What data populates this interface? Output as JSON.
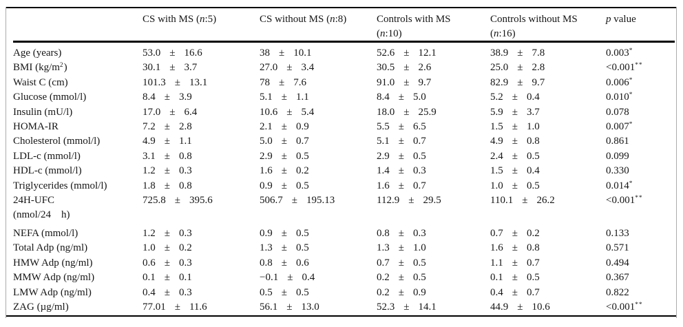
{
  "pm_symbol": "±",
  "table": {
    "header": {
      "col_label": "",
      "col1": "CS with MS (<i>n</i>:5)",
      "col2": "CS without MS (<i>n</i>:8)",
      "col3": "Controls with MS<br>(<i>n</i>:10)",
      "col4": "Controls without MS<br>(<i>n</i>:16)",
      "col_p": "<i>p</i> value"
    },
    "rows": [
      {
        "label": "Age (years)",
        "cs_ms": {
          "m": "53.0",
          "sd": "16.6"
        },
        "cs_no_ms": {
          "m": "38",
          "sd": "10.1"
        },
        "ctrl_ms": {
          "m": "52.6",
          "sd": "12.1"
        },
        "ctrl_no_ms": {
          "m": "38.9",
          "sd": "7.8"
        },
        "p": "0.003<sup>*</sup>"
      },
      {
        "label": "BMI (kg/m<sup>2</sup>)",
        "cs_ms": {
          "m": "30.1",
          "sd": "3.7"
        },
        "cs_no_ms": {
          "m": "27.0",
          "sd": "3.4"
        },
        "ctrl_ms": {
          "m": "30.5",
          "sd": "2.6"
        },
        "ctrl_no_ms": {
          "m": "25.0",
          "sd": "2.8"
        },
        "p": "&lt;0.001<sup>**</sup>"
      },
      {
        "label": "Waist C (cm)",
        "cs_ms": {
          "m": "101.3",
          "sd": "13.1"
        },
        "cs_no_ms": {
          "m": "78",
          "sd": "7.6"
        },
        "ctrl_ms": {
          "m": "91.0",
          "sd": "9.7"
        },
        "ctrl_no_ms": {
          "m": "82.9",
          "sd": "9.7"
        },
        "p": "0.006<sup>*</sup>"
      },
      {
        "label": "Glucose (mmol/l)",
        "cs_ms": {
          "m": "8.4",
          "sd": "3.9"
        },
        "cs_no_ms": {
          "m": "5.1",
          "sd": "1.1"
        },
        "ctrl_ms": {
          "m": "8.4",
          "sd": "5.0"
        },
        "ctrl_no_ms": {
          "m": "5.2",
          "sd": "0.4"
        },
        "p": "0.010<sup>*</sup>"
      },
      {
        "label": "Insulin (mU/l)",
        "cs_ms": {
          "m": "17.0",
          "sd": "6.4"
        },
        "cs_no_ms": {
          "m": "10.6",
          "sd": "5.4"
        },
        "ctrl_ms": {
          "m": "18.0",
          "sd": "25.9"
        },
        "ctrl_no_ms": {
          "m": "5.9",
          "sd": "3.7"
        },
        "p": "0.078"
      },
      {
        "label": "HOMA-IR",
        "cs_ms": {
          "m": "7.2",
          "sd": "2.8"
        },
        "cs_no_ms": {
          "m": "2.1",
          "sd": "0.9"
        },
        "ctrl_ms": {
          "m": "5.5",
          "sd": "6.5"
        },
        "ctrl_no_ms": {
          "m": "1.5",
          "sd": "1.0"
        },
        "p": "0.007<sup>*</sup>"
      },
      {
        "label": "Cholesterol (mmol/l)",
        "cs_ms": {
          "m": "4.9",
          "sd": "1.1"
        },
        "cs_no_ms": {
          "m": "5.0",
          "sd": "0.7"
        },
        "ctrl_ms": {
          "m": "5.1",
          "sd": "0.7"
        },
        "ctrl_no_ms": {
          "m": "4.9",
          "sd": "0.8"
        },
        "p": "0.861"
      },
      {
        "label": "LDL-c (mmol/l)",
        "cs_ms": {
          "m": "3.1",
          "sd": "0.8"
        },
        "cs_no_ms": {
          "m": "2.9",
          "sd": "0.5"
        },
        "ctrl_ms": {
          "m": "2.9",
          "sd": "0.5"
        },
        "ctrl_no_ms": {
          "m": "2.4",
          "sd": "0.5"
        },
        "p": "0.099"
      },
      {
        "label": "HDL-c (mmol/l)",
        "cs_ms": {
          "m": "1.2",
          "sd": "0.3"
        },
        "cs_no_ms": {
          "m": "1.6",
          "sd": "0.2"
        },
        "ctrl_ms": {
          "m": "1.4",
          "sd": "0.3"
        },
        "ctrl_no_ms": {
          "m": "1.5",
          "sd": "0.4"
        },
        "p": "0.330"
      },
      {
        "label": "Triglycerides (mmol/l)",
        "cs_ms": {
          "m": "1.8",
          "sd": "0.8"
        },
        "cs_no_ms": {
          "m": "0.9",
          "sd": "0.5"
        },
        "ctrl_ms": {
          "m": "1.6",
          "sd": "0.7"
        },
        "ctrl_no_ms": {
          "m": "1.0",
          "sd": "0.5"
        },
        "p": "0.014<sup>*</sup>"
      },
      {
        "label": "24H-UFC<br>(nmol/24&nbsp;&nbsp;&nbsp;&nbsp;h)",
        "cs_ms": {
          "m": "725.8",
          "sd": "395.6"
        },
        "cs_no_ms": {
          "m": "506.7",
          "sd": "195.13"
        },
        "ctrl_ms": {
          "m": "112.9",
          "sd": "29.5"
        },
        "ctrl_no_ms": {
          "m": "110.1",
          "sd": "26.2"
        },
        "p": "&lt;0.001<sup>**</sup>"
      },
      {
        "label": "NEFA (mmol/l)",
        "cs_ms": {
          "m": "1.2",
          "sd": "0.3"
        },
        "cs_no_ms": {
          "m": "0.9",
          "sd": "0.5"
        },
        "ctrl_ms": {
          "m": "0.8",
          "sd": "0.3"
        },
        "ctrl_no_ms": {
          "m": "0.7",
          "sd": "0.2"
        },
        "p": "0.133"
      },
      {
        "label": "Total Adp (ng/ml)",
        "cs_ms": {
          "m": "1.0",
          "sd": "0.2"
        },
        "cs_no_ms": {
          "m": "1.3",
          "sd": "0.5"
        },
        "ctrl_ms": {
          "m": "1.3",
          "sd": "1.0"
        },
        "ctrl_no_ms": {
          "m": "1.6",
          "sd": "0.8"
        },
        "p": "0.571"
      },
      {
        "label": "HMW Adp (ng/ml)",
        "cs_ms": {
          "m": "0.6",
          "sd": "0.3"
        },
        "cs_no_ms": {
          "m": "0.8",
          "sd": "0.6"
        },
        "ctrl_ms": {
          "m": "0.7",
          "sd": "0.5"
        },
        "ctrl_no_ms": {
          "m": "1.1",
          "sd": "0.7"
        },
        "p": "0.494"
      },
      {
        "label": "MMW Adp (ng/ml)",
        "cs_ms": {
          "m": "0.1",
          "sd": "0.1"
        },
        "cs_no_ms": {
          "m": "−0.1",
          "sd": "0.4"
        },
        "ctrl_ms": {
          "m": "0.2",
          "sd": "0.5"
        },
        "ctrl_no_ms": {
          "m": "0.1",
          "sd": "0.5"
        },
        "p": "0.367"
      },
      {
        "label": "LMW Adp (ng/ml)",
        "cs_ms": {
          "m": "0.4",
          "sd": "0.3"
        },
        "cs_no_ms": {
          "m": "0.5",
          "sd": "0.5"
        },
        "ctrl_ms": {
          "m": "0.2",
          "sd": "0.9"
        },
        "ctrl_no_ms": {
          "m": "0.4",
          "sd": "0.7"
        },
        "p": "0.822"
      },
      {
        "label": "ZAG (µg/ml)",
        "cs_ms": {
          "m": "77.01",
          "sd": "11.6"
        },
        "cs_no_ms": {
          "m": "56.1",
          "sd": "13.0"
        },
        "ctrl_ms": {
          "m": "52.3",
          "sd": "14.1"
        },
        "ctrl_no_ms": {
          "m": "44.9",
          "sd": "10.6"
        },
        "p": "&lt;0.001<sup>**</sup>"
      }
    ]
  }
}
